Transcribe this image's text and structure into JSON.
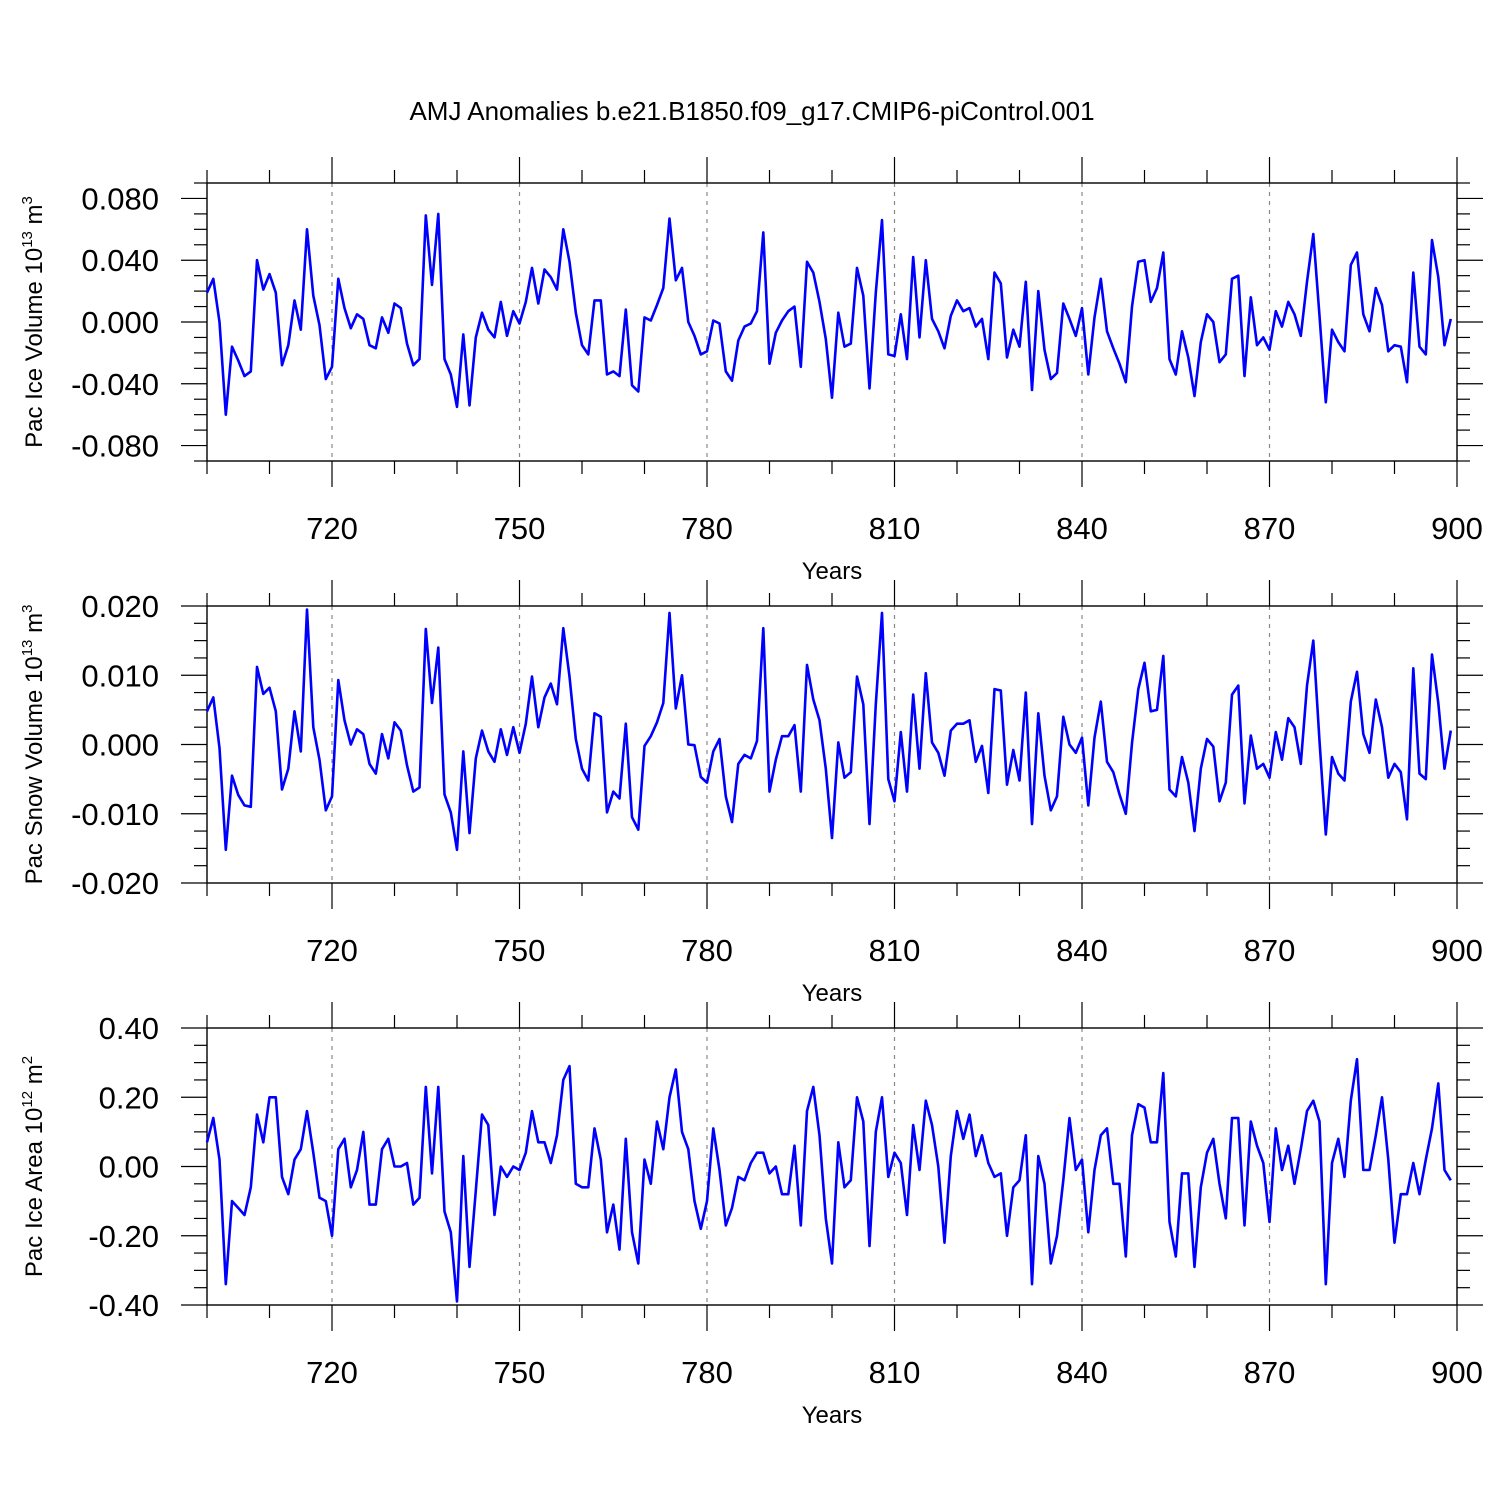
{
  "figure_title": "AMJ Anomalies b.e21.B1850.f09_g17.CMIP6-piControl.001",
  "chart_data": [
    {
      "type": "line",
      "title": "",
      "ylabel_base": "Pac Ice Volume 10",
      "ylabel_sup": "13",
      "ylabel_unit": " m",
      "ylabel_unit_sup": "3",
      "xlabel": "Years",
      "xlim": [
        700,
        900
      ],
      "ylim": [
        -0.09,
        0.09
      ],
      "xticks": [
        "720",
        "750",
        "780",
        "810",
        "840",
        "870",
        "900"
      ],
      "yticks": [
        "-0.080",
        "-0.040",
        "0.000",
        "0.040",
        "0.080"
      ],
      "ytick_values": [
        -0.08,
        -0.04,
        0.0,
        0.04,
        0.08
      ],
      "grid": "dashed vertical at x ticks",
      "series": [
        {
          "color": "#0000ff",
          "x_start": 700,
          "values": [
            0.019,
            0.028,
            0.0,
            -0.06,
            -0.016,
            -0.025,
            -0.035,
            -0.032,
            0.04,
            0.021,
            0.031,
            0.019,
            -0.028,
            -0.015,
            0.014,
            -0.005,
            0.06,
            0.017,
            -0.002,
            -0.037,
            -0.029,
            0.028,
            0.009,
            -0.004,
            0.005,
            0.002,
            -0.015,
            -0.017,
            0.003,
            -0.007,
            0.012,
            0.009,
            -0.014,
            -0.028,
            -0.024,
            0.069,
            0.024,
            0.07,
            -0.024,
            -0.034,
            -0.055,
            -0.008,
            -0.054,
            -0.01,
            0.006,
            -0.005,
            -0.01,
            0.013,
            -0.009,
            0.007,
            -0.001,
            0.013,
            0.035,
            0.012,
            0.034,
            0.029,
            0.021,
            0.06,
            0.039,
            0.006,
            -0.015,
            -0.021,
            0.014,
            0.014,
            -0.034,
            -0.032,
            -0.035,
            0.008,
            -0.041,
            -0.045,
            0.003,
            0.001,
            0.011,
            0.022,
            0.067,
            0.027,
            0.035,
            0.0,
            -0.009,
            -0.021,
            -0.019,
            0.001,
            -0.001,
            -0.032,
            -0.038,
            -0.012,
            -0.003,
            -0.001,
            0.007,
            0.058,
            -0.027,
            -0.007,
            0.001,
            0.007,
            0.01,
            -0.029,
            0.039,
            0.032,
            0.013,
            -0.011,
            -0.049,
            0.006,
            -0.016,
            -0.014,
            0.035,
            0.017,
            -0.043,
            0.019,
            0.066,
            -0.021,
            -0.022,
            0.005,
            -0.024,
            0.042,
            -0.01,
            0.04,
            0.002,
            -0.006,
            -0.017,
            0.004,
            0.014,
            0.007,
            0.009,
            -0.003,
            0.002,
            -0.024,
            0.032,
            0.025,
            -0.023,
            -0.005,
            -0.016,
            0.026,
            -0.044,
            0.02,
            -0.018,
            -0.037,
            -0.033,
            0.012,
            0.002,
            -0.009,
            0.009,
            -0.034,
            0.003,
            0.028,
            -0.006,
            -0.017,
            -0.027,
            -0.039,
            0.01,
            0.039,
            0.04,
            0.013,
            0.022,
            0.045,
            -0.024,
            -0.034,
            -0.006,
            -0.023,
            -0.048,
            -0.013,
            0.005,
            0.0,
            -0.026,
            -0.021,
            0.028,
            0.03,
            -0.035,
            0.016,
            -0.015,
            -0.01,
            -0.018,
            0.007,
            -0.003,
            0.013,
            0.005,
            -0.009,
            0.026,
            0.057,
            0.004,
            -0.052,
            -0.005,
            -0.013,
            -0.019,
            0.037,
            0.045,
            0.005,
            -0.006,
            0.022,
            0.011,
            -0.019,
            -0.015,
            -0.016,
            -0.039,
            0.032,
            -0.016,
            -0.021,
            0.053,
            0.029,
            -0.015,
            0.002
          ]
        }
      ]
    },
    {
      "type": "line",
      "title": "",
      "ylabel_base": "Pac Snow Volume 10",
      "ylabel_sup": "13",
      "ylabel_unit": " m",
      "ylabel_unit_sup": "3",
      "xlabel": "Years",
      "xlim": [
        700,
        900
      ],
      "ylim": [
        -0.02,
        0.02
      ],
      "xticks": [
        "720",
        "750",
        "780",
        "810",
        "840",
        "870",
        "900"
      ],
      "yticks": [
        "-0.020",
        "-0.010",
        "0.000",
        "0.010",
        "0.020"
      ],
      "ytick_values": [
        -0.02,
        -0.01,
        0.0,
        0.01,
        0.02
      ],
      "grid": "dashed vertical at x ticks",
      "series": [
        {
          "color": "#0000ff",
          "x_start": 700,
          "values": [
            0.0048,
            0.0068,
            -0.0005,
            -0.0152,
            -0.0045,
            -0.0073,
            -0.0088,
            -0.009,
            0.0112,
            0.0073,
            0.0082,
            0.0048,
            -0.0065,
            -0.0035,
            0.0048,
            -0.001,
            0.0195,
            0.0025,
            -0.0022,
            -0.0095,
            -0.0075,
            0.0093,
            0.0035,
            0.0,
            0.0022,
            0.0015,
            -0.0028,
            -0.0042,
            0.0015,
            -0.002,
            0.0032,
            0.002,
            -0.003,
            -0.0068,
            -0.0062,
            0.0167,
            0.006,
            0.014,
            -0.0072,
            -0.0098,
            -0.0152,
            -0.001,
            -0.0128,
            -0.002,
            0.002,
            -0.001,
            -0.0025,
            0.0022,
            -0.0015,
            0.0025,
            -0.0012,
            0.003,
            0.0098,
            0.0025,
            0.0068,
            0.0088,
            0.0058,
            0.0168,
            0.0098,
            0.0008,
            -0.0035,
            -0.0052,
            0.0045,
            0.004,
            -0.0098,
            -0.0068,
            -0.0078,
            0.003,
            -0.0105,
            -0.0123,
            -0.0002,
            0.0012,
            0.0032,
            0.006,
            0.019,
            0.0052,
            0.01,
            0.0,
            -0.0001,
            -0.0047,
            -0.0055,
            -0.001,
            0.0008,
            -0.0075,
            -0.0112,
            -0.0028,
            -0.0015,
            -0.002,
            0.0005,
            0.0168,
            -0.0068,
            -0.0022,
            0.0012,
            0.0012,
            0.0028,
            -0.0068,
            0.0115,
            0.0065,
            0.0035,
            -0.0035,
            -0.0135,
            0.0003,
            -0.0048,
            -0.004,
            0.0098,
            0.0058,
            -0.0115,
            0.0058,
            0.019,
            -0.005,
            -0.0082,
            0.0018,
            -0.0068,
            0.0072,
            -0.0035,
            0.0103,
            0.0003,
            -0.0012,
            -0.0045,
            0.002,
            0.003,
            0.003,
            0.0035,
            -0.0025,
            -0.0002,
            -0.007,
            0.008,
            0.0078,
            -0.0058,
            -0.0008,
            -0.0052,
            0.0075,
            -0.0115,
            0.0045,
            -0.0045,
            -0.0095,
            -0.0075,
            0.004,
            0.0,
            -0.0012,
            0.001,
            -0.0088,
            0.001,
            0.0062,
            -0.0025,
            -0.004,
            -0.0072,
            -0.01,
            0.0002,
            0.008,
            0.0118,
            0.0048,
            0.005,
            0.0128,
            -0.0065,
            -0.0075,
            -0.0018,
            -0.0055,
            -0.0125,
            -0.0035,
            0.0008,
            -0.0003,
            -0.0082,
            -0.0055,
            0.0072,
            0.0085,
            -0.0085,
            0.0013,
            -0.0035,
            -0.0028,
            -0.0048,
            0.0018,
            -0.0022,
            0.0038,
            0.0025,
            -0.0028,
            0.0085,
            0.015,
            0.0005,
            -0.013,
            -0.0018,
            -0.0042,
            -0.0052,
            0.0062,
            0.0105,
            0.0015,
            -0.0012,
            0.0065,
            0.0025,
            -0.0048,
            -0.0028,
            -0.004,
            -0.0108,
            0.011,
            -0.0042,
            -0.005,
            0.013,
            0.006,
            -0.0035,
            0.002
          ]
        }
      ]
    },
    {
      "type": "line",
      "title": "",
      "ylabel_base": "Pac Ice Area 10",
      "ylabel_sup": "12",
      "ylabel_unit": " m",
      "ylabel_unit_sup": "2",
      "xlabel": "Years",
      "xlim": [
        700,
        900
      ],
      "ylim": [
        -0.4,
        0.4
      ],
      "xticks": [
        "720",
        "750",
        "780",
        "810",
        "840",
        "870",
        "900"
      ],
      "yticks": [
        "-0.40",
        "-0.20",
        "0.00",
        "0.20",
        "0.40"
      ],
      "ytick_values": [
        -0.4,
        -0.2,
        0.0,
        0.2,
        0.4
      ],
      "grid": "dashed vertical at x ticks",
      "series": [
        {
          "color": "#0000ff",
          "x_start": 700,
          "values": [
            0.07,
            0.14,
            0.02,
            -0.34,
            -0.1,
            -0.12,
            -0.14,
            -0.06,
            0.15,
            0.07,
            0.2,
            0.2,
            -0.03,
            -0.08,
            0.02,
            0.05,
            0.16,
            0.04,
            -0.09,
            -0.1,
            -0.2,
            0.05,
            0.08,
            -0.06,
            -0.01,
            0.1,
            -0.11,
            -0.11,
            0.05,
            0.08,
            0.0,
            0.0,
            0.01,
            -0.11,
            -0.09,
            0.23,
            -0.02,
            0.23,
            -0.13,
            -0.19,
            -0.39,
            0.03,
            -0.29,
            -0.07,
            0.15,
            0.12,
            -0.14,
            0.0,
            -0.03,
            0.0,
            -0.01,
            0.04,
            0.16,
            0.07,
            0.07,
            0.01,
            0.09,
            0.25,
            0.29,
            -0.05,
            -0.06,
            -0.06,
            0.11,
            0.02,
            -0.19,
            -0.11,
            -0.24,
            0.08,
            -0.19,
            -0.28,
            0.02,
            -0.05,
            0.13,
            0.05,
            0.2,
            0.28,
            0.1,
            0.05,
            -0.1,
            -0.18,
            -0.1,
            0.11,
            -0.01,
            -0.17,
            -0.12,
            -0.03,
            -0.04,
            0.01,
            0.04,
            0.04,
            -0.02,
            0.0,
            -0.08,
            -0.08,
            0.06,
            -0.17,
            0.16,
            0.23,
            0.09,
            -0.15,
            -0.28,
            0.07,
            -0.06,
            -0.04,
            0.2,
            0.13,
            -0.23,
            0.1,
            0.2,
            -0.03,
            0.04,
            0.01,
            -0.14,
            0.12,
            -0.01,
            0.19,
            0.12,
            0.0,
            -0.22,
            0.03,
            0.16,
            0.08,
            0.15,
            0.03,
            0.09,
            0.01,
            -0.03,
            -0.02,
            -0.2,
            -0.06,
            -0.04,
            0.09,
            -0.34,
            0.03,
            -0.05,
            -0.28,
            -0.2,
            -0.04,
            0.14,
            -0.01,
            0.02,
            -0.19,
            -0.01,
            0.09,
            0.11,
            -0.05,
            -0.05,
            -0.26,
            0.09,
            0.18,
            0.17,
            0.07,
            0.07,
            0.27,
            -0.16,
            -0.26,
            -0.02,
            -0.02,
            -0.29,
            -0.06,
            0.04,
            0.08,
            -0.05,
            -0.15,
            0.14,
            0.14,
            -0.17,
            0.13,
            0.06,
            0.01,
            -0.16,
            0.11,
            -0.01,
            0.06,
            -0.05,
            0.05,
            0.16,
            0.19,
            0.13,
            -0.34,
            0.01,
            0.08,
            -0.03,
            0.19,
            0.31,
            -0.01,
            -0.01,
            0.09,
            0.2,
            0.02,
            -0.22,
            -0.08,
            -0.08,
            0.01,
            -0.08,
            0.02,
            0.11,
            0.24,
            -0.01,
            -0.04
          ]
        }
      ]
    }
  ]
}
